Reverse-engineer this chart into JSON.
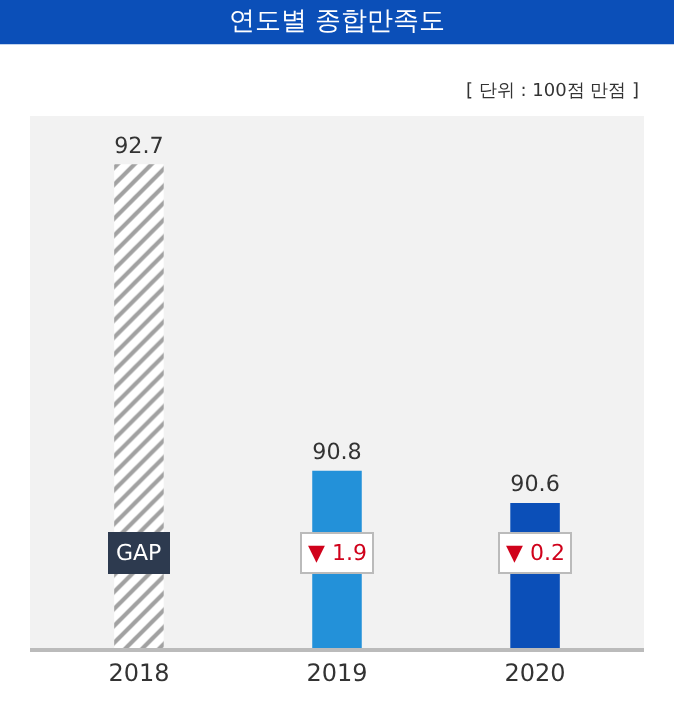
{
  "chart_data": {
    "type": "bar",
    "title": "연도별 종합만족도",
    "subtitle": "[ 단위 : 100점 만점 ]",
    "categories": [
      "2018",
      "2019",
      "2020"
    ],
    "values": [
      92.7,
      90.8,
      90.6
    ],
    "colors": [
      "#c8c8c8",
      "#2391d9",
      "#0b4fb8"
    ],
    "ylim": [
      89.7,
      93.0
    ],
    "data_labels": true,
    "tick_labels": "x",
    "annotations": [
      "GAP",
      "▼ 1.9",
      "▼ 0.2"
    ]
  }
}
